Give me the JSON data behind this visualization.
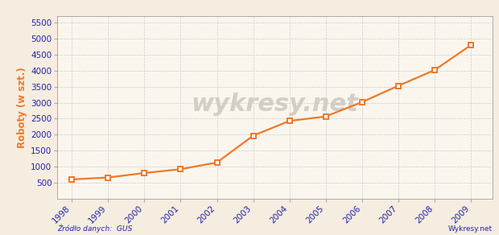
{
  "years": [
    1998,
    1999,
    2000,
    2001,
    2002,
    2003,
    2004,
    2005,
    2006,
    2007,
    2008,
    2009
  ],
  "values": [
    600,
    660,
    800,
    920,
    1130,
    1970,
    2430,
    2570,
    3020,
    3530,
    4020,
    4800
  ],
  "line_color": "#f07828",
  "marker_color": "#f07828",
  "marker_face": "#ffffff",
  "bg_outer": "#f5ede0",
  "bg_plot": "#faf6ee",
  "grid_color": "#cccccc",
  "ylabel": "Roboty (w szt.)",
  "ylabel_color": "#f07828",
  "tick_color": "#2222aa",
  "source_text": "Źródło danych:  GUS",
  "watermark": "wykresy.net",
  "footer_right": "Wykresy.net",
  "ylim_min": 0,
  "ylim_max": 5700,
  "yticks": [
    500,
    1000,
    1500,
    2000,
    2500,
    3000,
    3500,
    4000,
    4500,
    5000,
    5500
  ],
  "axis_fontsize": 7.5,
  "ylabel_fontsize": 8.5
}
